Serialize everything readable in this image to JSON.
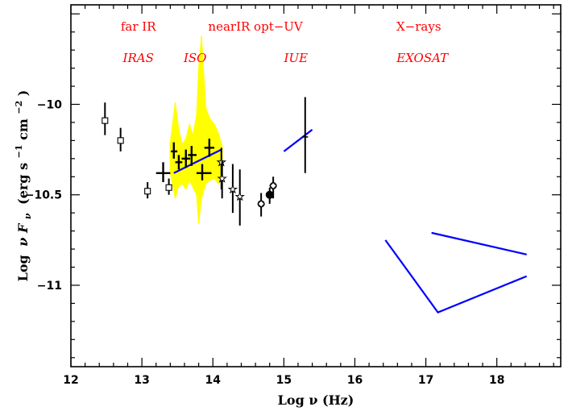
{
  "chart_data": {
    "type": "scatter",
    "title": "",
    "xlabel": "Log ν (Hz)",
    "ylabel_parts": {
      "log": "Log",
      "nu": "ν",
      "F": "F",
      "sub_nu": "ν",
      "units_open": "(erg s",
      "sup1": "−1",
      "cm": "cm",
      "sup2": "−2",
      "units_close": ")"
    },
    "xlim": [
      12,
      18.9
    ],
    "ylim": [
      -11.45,
      -9.45
    ],
    "xticks": [
      "12",
      "13",
      "14",
      "15",
      "16",
      "17",
      "18"
    ],
    "yticks": [
      {
        "label": "−10",
        "value": -10
      },
      {
        "label": "−10.5",
        "value": -10.5
      },
      {
        "label": "−11",
        "value": -11
      }
    ],
    "band_labels": [
      {
        "text": "far IR",
        "x": 12.95,
        "style": "upright"
      },
      {
        "text": "nearIR opt−UV",
        "x": 14.6,
        "style": "upright"
      },
      {
        "text": "X−rays",
        "x": 16.9,
        "style": "upright"
      },
      {
        "text": "IRAS",
        "x": 12.95,
        "style": "italic"
      },
      {
        "text": "ISO",
        "x": 13.75,
        "style": "italic"
      },
      {
        "text": "IUE",
        "x": 15.17,
        "style": "italic"
      },
      {
        "text": "EXOSAT",
        "x": 16.95,
        "style": "italic"
      }
    ],
    "series": [
      {
        "marker": "square",
        "points": [
          {
            "x": 12.48,
            "y": -10.09,
            "ylo": -10.17,
            "yhi": -9.99
          },
          {
            "x": 12.7,
            "y": -10.2,
            "ylo": -10.26,
            "yhi": -10.13
          },
          {
            "x": 13.08,
            "y": -10.48,
            "ylo": -10.52,
            "yhi": -10.43
          },
          {
            "x": 13.38,
            "y": -10.46,
            "ylo": -10.5,
            "yhi": -10.41
          }
        ]
      },
      {
        "marker": "cross",
        "points": [
          {
            "x": 13.3,
            "y": -10.38,
            "ylo": -10.43,
            "yhi": -10.32,
            "xlo": 13.2,
            "xhi": 13.4
          },
          {
            "x": 13.45,
            "y": -10.26,
            "ylo": -10.3,
            "yhi": -10.21,
            "xlo": 13.41,
            "xhi": 13.5
          },
          {
            "x": 13.52,
            "y": -10.32,
            "ylo": -10.36,
            "yhi": -10.28,
            "xlo": 13.47,
            "xhi": 13.57
          },
          {
            "x": 13.62,
            "y": -10.3,
            "ylo": -10.35,
            "yhi": -10.25,
            "xlo": 13.56,
            "xhi": 13.68
          },
          {
            "x": 13.7,
            "y": -10.28,
            "ylo": -10.34,
            "yhi": -10.23,
            "xlo": 13.65,
            "xhi": 13.77
          },
          {
            "x": 13.85,
            "y": -10.38,
            "ylo": -10.42,
            "yhi": -10.33,
            "xlo": 13.77,
            "xhi": 13.98
          },
          {
            "x": 13.95,
            "y": -10.24,
            "ylo": -10.29,
            "yhi": -10.19,
            "xlo": 13.88,
            "xhi": 14.02
          }
        ]
      },
      {
        "marker": "star",
        "points": [
          {
            "x": 14.12,
            "y": -10.32,
            "ylo": -10.47,
            "yhi": -10.24
          },
          {
            "x": 14.13,
            "y": -10.41,
            "ylo": -10.52,
            "yhi": -10.31
          },
          {
            "x": 14.28,
            "y": -10.47,
            "ylo": -10.6,
            "yhi": -10.33
          },
          {
            "x": 14.38,
            "y": -10.51,
            "ylo": -10.67,
            "yhi": -10.36
          }
        ]
      },
      {
        "marker": "diamond",
        "points": [
          {
            "x": 14.68,
            "y": -10.55,
            "ylo": -10.62,
            "yhi": -10.49
          },
          {
            "x": 14.85,
            "y": -10.45,
            "ylo": -10.52,
            "yhi": -10.4
          }
        ]
      },
      {
        "marker": "filled-circle",
        "points": [
          {
            "x": 14.8,
            "y": -10.5,
            "ylo": -10.55,
            "yhi": -10.46
          }
        ]
      },
      {
        "marker": "tick",
        "points": [
          {
            "x": 15.3,
            "y": -10.18,
            "ylo": -10.38,
            "yhi": -9.96,
            "xlo": 15.26,
            "xhi": 15.34
          }
        ]
      }
    ],
    "lines": [
      {
        "name": "iso-fit",
        "color": "#0000ff",
        "points": [
          [
            13.45,
            -10.38
          ],
          [
            14.12,
            -10.25
          ]
        ]
      },
      {
        "name": "iue-fit",
        "color": "#0000ff",
        "points": [
          [
            15.0,
            -10.26
          ],
          [
            15.4,
            -10.14
          ]
        ]
      },
      {
        "name": "exosat-1",
        "color": "#0000ff",
        "points": [
          [
            16.43,
            -10.75
          ],
          [
            17.17,
            -11.15
          ],
          [
            18.42,
            -10.95
          ]
        ]
      },
      {
        "name": "exosat-2",
        "color": "#0000ff",
        "points": [
          [
            17.08,
            -10.71
          ],
          [
            18.42,
            -10.83
          ]
        ]
      }
    ],
    "shaded_band": {
      "color": "#ffff00",
      "x": [
        13.4,
        13.47,
        13.52,
        13.57,
        13.62,
        13.67,
        13.72,
        13.77,
        13.8,
        13.84,
        13.9,
        13.96,
        14.02,
        14.08,
        14.13
      ],
      "upper": [
        -10.21,
        -9.99,
        -10.14,
        -10.22,
        -10.19,
        -10.11,
        -10.17,
        -10.06,
        -9.8,
        -9.62,
        -10.02,
        -10.08,
        -10.11,
        -10.16,
        -10.23
      ],
      "lower": [
        -10.38,
        -10.52,
        -10.45,
        -10.44,
        -10.47,
        -10.42,
        -10.46,
        -10.5,
        -10.66,
        -10.52,
        -10.44,
        -10.42,
        -10.41,
        -10.44,
        -10.41
      ]
    },
    "colors": {
      "frame": "#000000",
      "band_text": "#ff0000",
      "fit_line": "#0000ff",
      "iso_band": "#ffff00"
    }
  }
}
